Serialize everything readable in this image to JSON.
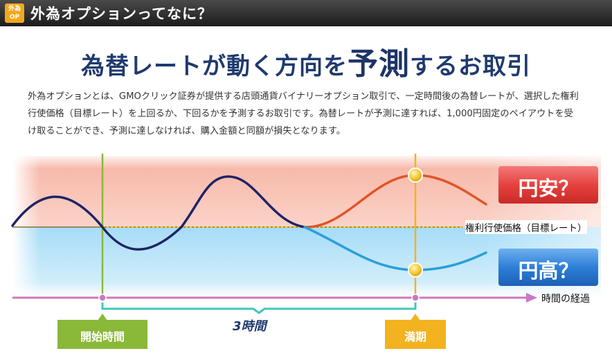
{
  "header": {
    "badge_line1": "外為",
    "badge_line2": "OP",
    "title": "外為オプションってなに？"
  },
  "heading": {
    "part1": "為替レートが動く方向を",
    "part2": "予測",
    "part3": "するお取引"
  },
  "description": "外為オプションとは、GMOクリック証券が提供する店頭通貨バイナリーオプション取引で、一定時間後の為替レートが、選択した権利行使価格（目標レート）を上回るか、下回るかを予測するお取引です。為替レートが予測に達すれば、1,000円固定のペイアウトを受け取ることができ、予測に達しなければ、購入金額と同額が損失となります。",
  "diagram": {
    "yen_weak_label": "円安？",
    "yen_strong_label": "円高？",
    "strike_label": "権利行使価格（目標レート）",
    "time_label": "時間の経過",
    "duration_label": "3時間",
    "start_label": "開始時間",
    "expiry_label": "満期",
    "colors": {
      "upper_zone": "#f9c3b6",
      "lower_zone": "#b3e1f8",
      "main_line": "#1f2466",
      "up_path": "#e0542a",
      "down_path": "#2b9fd9",
      "time_axis": "#cc77c2",
      "start_marker": "#8ab838",
      "expiry_marker": "#f3b21f",
      "bracket": "#3fc8b8"
    }
  }
}
